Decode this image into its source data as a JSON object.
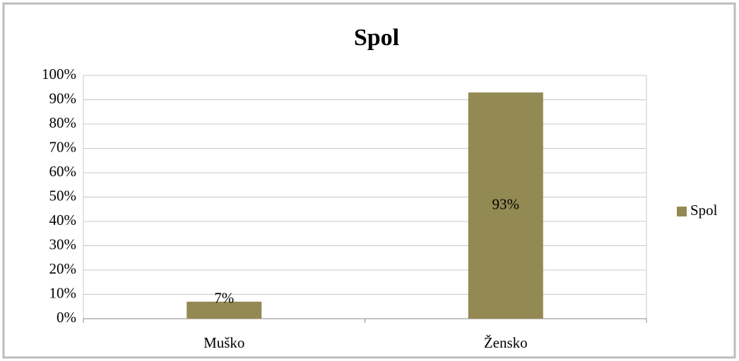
{
  "chart_data": {
    "type": "bar",
    "title": "Spol",
    "categories": [
      "Muško",
      "Žensko"
    ],
    "series": [
      {
        "name": "Spol",
        "color": "#938953",
        "values": [
          7,
          93
        ],
        "value_labels": [
          "7%",
          "93%"
        ]
      }
    ],
    "ylim": [
      0,
      100
    ],
    "yticks": [
      {
        "value": 0,
        "label": "0%"
      },
      {
        "value": 10,
        "label": "10%"
      },
      {
        "value": 20,
        "label": "20%"
      },
      {
        "value": 30,
        "label": "30%"
      },
      {
        "value": 40,
        "label": "40%"
      },
      {
        "value": 50,
        "label": "50%"
      },
      {
        "value": 60,
        "label": "60%"
      },
      {
        "value": 70,
        "label": "70%"
      },
      {
        "value": 80,
        "label": "80%"
      },
      {
        "value": 90,
        "label": "90%"
      },
      {
        "value": 100,
        "label": "100%"
      }
    ],
    "grid": true,
    "legend": "right"
  }
}
